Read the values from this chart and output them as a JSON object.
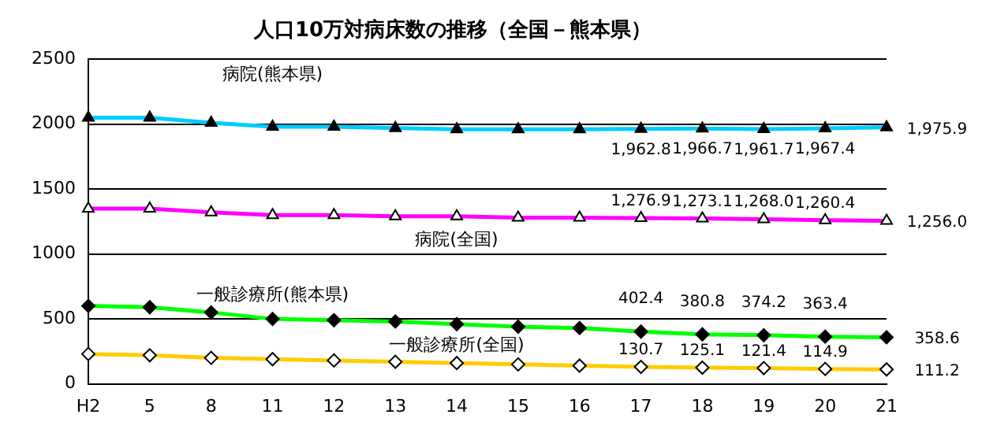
{
  "chart_data": {
    "type": "line",
    "title": "人口10万対病床数の推移（全国－熊本県）",
    "categories": [
      "H2",
      "5",
      "8",
      "11",
      "12",
      "13",
      "14",
      "15",
      "16",
      "17",
      "18",
      "19",
      "20",
      "21"
    ],
    "series": [
      {
        "name": "病院(熊本県)",
        "color": "#00ccff",
        "marker": "triangle",
        "values": [
          2050,
          2050,
          2010,
          1980,
          1980,
          1970,
          1960,
          1960,
          1960,
          1962.8,
          1966.7,
          1961.7,
          1967.4,
          1975.9
        ],
        "value_labels": [
          null,
          null,
          null,
          null,
          null,
          null,
          null,
          null,
          null,
          "1,962.8",
          "1,966.7",
          "1,961.7",
          "1,967.4",
          "1,975.9"
        ]
      },
      {
        "name": "病院(全国)",
        "color": "#ff00ff",
        "marker": "triangle",
        "values": [
          1350,
          1350,
          1320,
          1300,
          1300,
          1290,
          1290,
          1280,
          1280,
          1276.9,
          1273.1,
          1268.0,
          1260.4,
          1256.0
        ],
        "value_labels": [
          null,
          null,
          null,
          null,
          null,
          null,
          null,
          null,
          null,
          "1,276.9",
          "1,273.1",
          "1,268.0",
          "1,260.4",
          "1,256.0"
        ]
      },
      {
        "name": "一般診療所(熊本県)",
        "color": "#00ff00",
        "marker": "diamond",
        "values": [
          600,
          590,
          550,
          500,
          490,
          480,
          460,
          440,
          430,
          402.4,
          380.8,
          374.2,
          363.4,
          358.6
        ],
        "value_labels": [
          null,
          null,
          null,
          null,
          null,
          null,
          null,
          null,
          null,
          "402.4",
          "380.8",
          "374.2",
          "363.4",
          "358.6"
        ]
      },
      {
        "name": "一般診療所(全国)",
        "color": "#ffcc00",
        "marker": "diamond",
        "values": [
          230,
          220,
          200,
          190,
          180,
          170,
          160,
          150,
          140,
          130.7,
          125.1,
          121.4,
          114.9,
          111.2
        ],
        "value_labels": [
          null,
          null,
          null,
          null,
          null,
          null,
          null,
          null,
          null,
          "130.7",
          "125.1",
          "121.4",
          "114.9",
          "111.2"
        ]
      }
    ],
    "ylim": [
      0,
      2500
    ],
    "yticks": [
      0,
      500,
      1000,
      1500,
      2000,
      2500
    ],
    "grid": "y",
    "legend": false
  }
}
